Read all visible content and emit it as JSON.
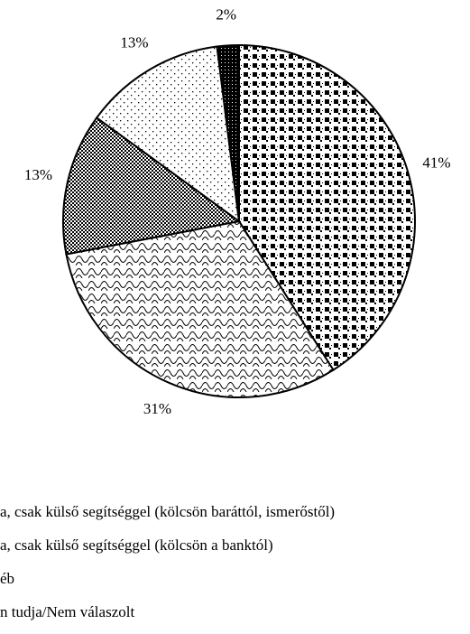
{
  "chart_data": {
    "type": "pie",
    "categories": [
      null,
      "a, csak külső segítséggel (kölcsön baráttól, ismerőstől)",
      "a, csak külső segítséggel (kölcsön a banktól)",
      "éb",
      "n tudja/Nem válaszolt"
    ],
    "values": [
      41,
      31,
      13,
      13,
      2
    ],
    "value_labels": [
      "41%",
      "31%",
      "13%",
      "13%",
      "2%"
    ]
  }
}
